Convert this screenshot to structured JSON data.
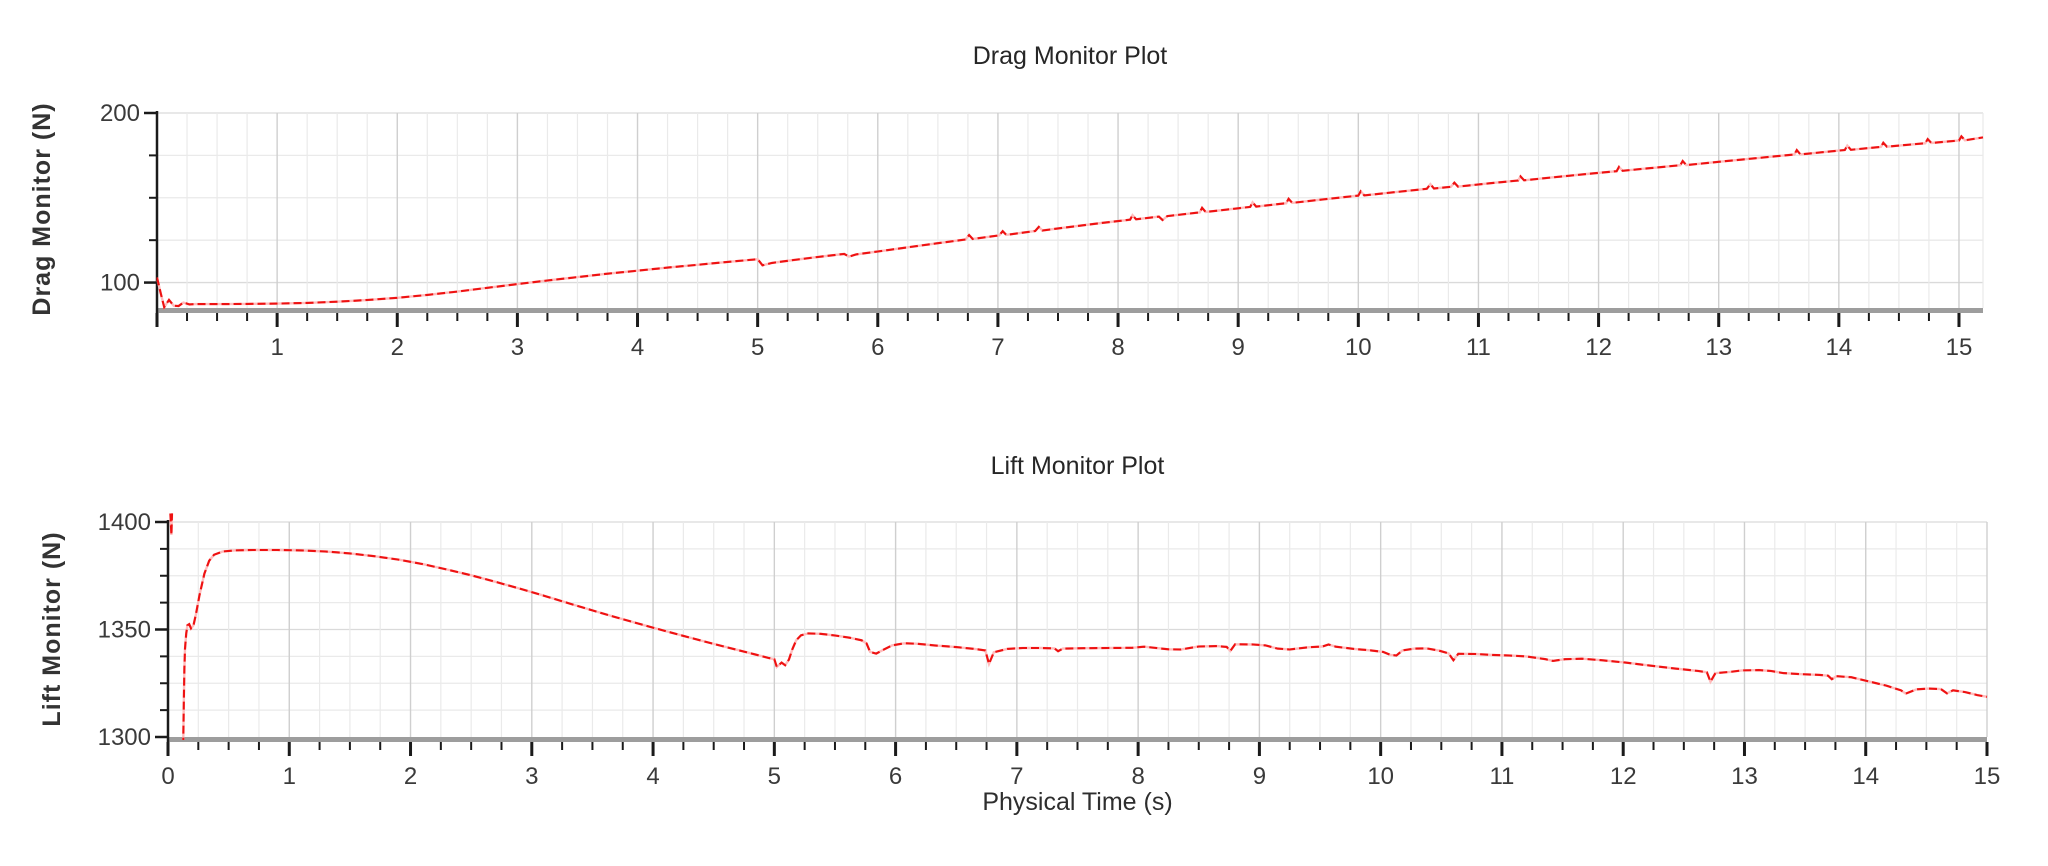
{
  "panel": {
    "background": "#ffffff"
  },
  "colors": {
    "grid_minor": "#eaeaea",
    "grid_major": "#cfcfcf",
    "grid_major_h": "#dadada",
    "axis_x": "#9d9d9d",
    "axis_y": "#1a1a1a",
    "tick_label": "#3a3a3a"
  },
  "chart_data": [
    {
      "type": "line",
      "title": "Drag Monitor Plot",
      "ylabel": "Drag Monitor (N)",
      "xlabel": "",
      "series_name": "Drag Monitor",
      "line_color": "#ee1111",
      "line_underlay_color": "#ffbcbc",
      "legend": "none",
      "grid": true,
      "xlim": [
        0,
        15.2
      ],
      "ylim": [
        85,
        200
      ],
      "x_minor_step": 0.25,
      "x_tick_values": [
        1,
        2,
        3,
        4,
        5,
        6,
        7,
        8,
        9,
        10,
        11,
        12,
        13,
        14,
        15
      ],
      "x_tick_labels": [
        "1",
        "2",
        "3",
        "4",
        "5",
        "6",
        "7",
        "8",
        "9",
        "10",
        "11",
        "12",
        "13",
        "14",
        "15"
      ],
      "y_tick_values": [
        100,
        200
      ],
      "y_tick_labels": [
        "100",
        "200"
      ],
      "y_grid_start": 100,
      "y_minor_step": 25,
      "points": [
        [
          0,
          103
        ],
        [
          0.03,
          94
        ],
        [
          0.06,
          85.5
        ],
        [
          0.1,
          89.8
        ],
        [
          0.14,
          86.3
        ],
        [
          0.18,
          86.2
        ],
        [
          0.22,
          88.2
        ],
        [
          0.27,
          87.1
        ],
        [
          0.32,
          87.3
        ],
        [
          0.5,
          87.3
        ],
        [
          0.75,
          87.4
        ],
        [
          1,
          87.6
        ],
        [
          1.25,
          88
        ],
        [
          1.5,
          88.7
        ],
        [
          1.75,
          89.7
        ],
        [
          2,
          91
        ],
        [
          2.25,
          92.7
        ],
        [
          2.5,
          94.7
        ],
        [
          2.75,
          96.9
        ],
        [
          3,
          99.1
        ],
        [
          3.25,
          101.2
        ],
        [
          3.5,
          103.2
        ],
        [
          3.75,
          105.2
        ],
        [
          4,
          107
        ],
        [
          4.25,
          108.8
        ],
        [
          4.5,
          110.5
        ],
        [
          4.75,
          112.2
        ],
        [
          5,
          113.8
        ],
        [
          5.04,
          110.2
        ],
        [
          5.12,
          111.6
        ],
        [
          5.3,
          113.3
        ],
        [
          5.5,
          115.1
        ],
        [
          5.72,
          116.9
        ],
        [
          5.76,
          115.3
        ],
        [
          5.82,
          116.6
        ],
        [
          6,
          118.3
        ],
        [
          6.25,
          120.8
        ],
        [
          6.5,
          123.2
        ],
        [
          6.73,
          125.4
        ],
        [
          6.76,
          128
        ],
        [
          6.79,
          125.7
        ],
        [
          7.01,
          127.8
        ],
        [
          7.04,
          130.3
        ],
        [
          7.07,
          128.1
        ],
        [
          7.31,
          130.4
        ],
        [
          7.34,
          132.8
        ],
        [
          7.37,
          130.7
        ],
        [
          7.6,
          132.8
        ],
        [
          7.86,
          135.1
        ],
        [
          8.1,
          137.1
        ],
        [
          8.12,
          139.7
        ],
        [
          8.15,
          137.3
        ],
        [
          8.34,
          138.9
        ],
        [
          8.37,
          136.9
        ],
        [
          8.41,
          139.2
        ],
        [
          8.68,
          141.4
        ],
        [
          8.7,
          144.1
        ],
        [
          8.73,
          141.6
        ],
        [
          9,
          143.8
        ],
        [
          9.1,
          144.6
        ],
        [
          9.12,
          147.3
        ],
        [
          9.15,
          144.8
        ],
        [
          9.4,
          146.8
        ],
        [
          9.42,
          149.4
        ],
        [
          9.45,
          147
        ],
        [
          9.7,
          149
        ],
        [
          10,
          151.3
        ],
        [
          10.02,
          153.8
        ],
        [
          10.05,
          151.4
        ],
        [
          10.3,
          153.3
        ],
        [
          10.57,
          155.3
        ],
        [
          10.6,
          158
        ],
        [
          10.63,
          155.5
        ],
        [
          10.77,
          156.5
        ],
        [
          10.8,
          158.9
        ],
        [
          10.83,
          156.6
        ],
        [
          11.1,
          158.6
        ],
        [
          11.33,
          160.2
        ],
        [
          11.35,
          162.6
        ],
        [
          11.38,
          160.3
        ],
        [
          11.6,
          161.9
        ],
        [
          11.9,
          164
        ],
        [
          12.15,
          165.7
        ],
        [
          12.17,
          168.2
        ],
        [
          12.2,
          165.9
        ],
        [
          12.45,
          167.6
        ],
        [
          12.68,
          169.2
        ],
        [
          12.7,
          171.7
        ],
        [
          12.73,
          169.3
        ],
        [
          13,
          171.2
        ],
        [
          13.3,
          173.3
        ],
        [
          13.63,
          175.5
        ],
        [
          13.65,
          178.1
        ],
        [
          13.68,
          175.6
        ],
        [
          13.95,
          177.5
        ],
        [
          14.05,
          178.2
        ],
        [
          14.07,
          180.7
        ],
        [
          14.1,
          178.3
        ],
        [
          14.35,
          180
        ],
        [
          14.37,
          182.4
        ],
        [
          14.4,
          180.1
        ],
        [
          14.6,
          181.4
        ],
        [
          14.72,
          182.2
        ],
        [
          14.74,
          184.6
        ],
        [
          14.77,
          182.3
        ],
        [
          15,
          183.8
        ],
        [
          15.02,
          186.2
        ],
        [
          15.05,
          183.9
        ],
        [
          15.2,
          185.6
        ]
      ]
    },
    {
      "type": "line",
      "title": "Lift Monitor Plot",
      "ylabel": "Lift Monitor (N)",
      "xlabel": "Physical Time (s)",
      "series_name": "Lift Monitor",
      "line_color": "#ee1111",
      "line_underlay_color": "#ffbcbc",
      "legend": "none",
      "grid": true,
      "xlim": [
        0,
        15
      ],
      "ylim": [
        1300,
        1400
      ],
      "x_minor_step": 0.25,
      "x_tick_values": [
        0,
        1,
        2,
        3,
        4,
        5,
        6,
        7,
        8,
        9,
        10,
        11,
        12,
        13,
        14,
        15
      ],
      "x_tick_labels": [
        "0",
        "1",
        "2",
        "3",
        "4",
        "5",
        "6",
        "7",
        "8",
        "9",
        "10",
        "11",
        "12",
        "13",
        "14",
        "15"
      ],
      "y_tick_values": [
        1300,
        1350,
        1400
      ],
      "y_tick_labels": [
        "1300",
        "1350",
        "1400"
      ],
      "y_grid_start": 1300,
      "y_minor_step": 12.5,
      "points": [
        [
          0.02,
          1404
        ],
        [
          0.028,
          1394
        ],
        [
          0.033,
          1404
        ],
        null,
        [
          0.125,
          1296
        ],
        [
          0.13,
          1316
        ],
        [
          0.135,
          1332
        ],
        [
          0.14,
          1341
        ],
        [
          0.15,
          1348
        ],
        [
          0.16,
          1352
        ],
        [
          0.175,
          1352.5
        ],
        [
          0.19,
          1350.5
        ],
        [
          0.21,
          1352
        ],
        [
          0.23,
          1357
        ],
        [
          0.26,
          1366
        ],
        [
          0.3,
          1376
        ],
        [
          0.34,
          1382
        ],
        [
          0.38,
          1384.8
        ],
        [
          0.45,
          1386.3
        ],
        [
          0.55,
          1386.8
        ],
        [
          0.7,
          1387
        ],
        [
          0.9,
          1387
        ],
        [
          1.1,
          1386.8
        ],
        [
          1.3,
          1386.3
        ],
        [
          1.5,
          1385.4
        ],
        [
          1.7,
          1384.1
        ],
        [
          1.9,
          1382.5
        ],
        [
          2.1,
          1380.4
        ],
        [
          2.3,
          1377.9
        ],
        [
          2.5,
          1375.2
        ],
        [
          2.7,
          1372.2
        ],
        [
          2.9,
          1369
        ],
        [
          3.1,
          1365.7
        ],
        [
          3.3,
          1362.3
        ],
        [
          3.5,
          1358.9
        ],
        [
          3.7,
          1355.6
        ],
        [
          3.9,
          1352.4
        ],
        [
          4.1,
          1349.3
        ],
        [
          4.3,
          1346.3
        ],
        [
          4.5,
          1343.3
        ],
        [
          4.7,
          1340.4
        ],
        [
          4.85,
          1338.3
        ],
        [
          4.95,
          1336.8
        ],
        [
          5.0,
          1336.2
        ],
        [
          5.02,
          1332.6
        ],
        [
          5.06,
          1334.6
        ],
        [
          5.09,
          1333.4
        ],
        [
          5.12,
          1336
        ],
        [
          5.15,
          1341
        ],
        [
          5.18,
          1345
        ],
        [
          5.22,
          1347.3
        ],
        [
          5.28,
          1348.2
        ],
        [
          5.38,
          1348
        ],
        [
          5.5,
          1347.2
        ],
        [
          5.62,
          1346.2
        ],
        [
          5.72,
          1345
        ],
        [
          5.76,
          1343.6
        ],
        [
          5.79,
          1339.6
        ],
        [
          5.84,
          1338.8
        ],
        [
          5.9,
          1340.6
        ],
        [
          5.97,
          1342.6
        ],
        [
          6.07,
          1343.6
        ],
        [
          6.17,
          1343.4
        ],
        [
          6.32,
          1342.6
        ],
        [
          6.5,
          1341.8
        ],
        [
          6.65,
          1341
        ],
        [
          6.74,
          1340.3
        ],
        [
          6.77,
          1334
        ],
        [
          6.81,
          1339.4
        ],
        [
          6.92,
          1341
        ],
        [
          7.05,
          1341.4
        ],
        [
          7.2,
          1341.4
        ],
        [
          7.31,
          1341.2
        ],
        [
          7.34,
          1339.9
        ],
        [
          7.38,
          1341.1
        ],
        [
          7.55,
          1341.3
        ],
        [
          7.75,
          1341.4
        ],
        [
          7.95,
          1341.5
        ],
        [
          8.05,
          1342
        ],
        [
          8.15,
          1341.4
        ],
        [
          8.25,
          1340.8
        ],
        [
          8.35,
          1340.7
        ],
        [
          8.5,
          1342.1
        ],
        [
          8.65,
          1342.3
        ],
        [
          8.73,
          1341.9
        ],
        [
          8.76,
          1340
        ],
        [
          8.8,
          1343.1
        ],
        [
          8.95,
          1343
        ],
        [
          9.05,
          1342.6
        ],
        [
          9.15,
          1341.1
        ],
        [
          9.25,
          1340.7
        ],
        [
          9.4,
          1341.7
        ],
        [
          9.52,
          1342.1
        ],
        [
          9.57,
          1343
        ],
        [
          9.63,
          1342
        ],
        [
          9.78,
          1341
        ],
        [
          9.92,
          1340.3
        ],
        [
          10.02,
          1339.6
        ],
        [
          10.08,
          1338.2
        ],
        [
          10.13,
          1337.9
        ],
        [
          10.18,
          1340.3
        ],
        [
          10.28,
          1341.1
        ],
        [
          10.38,
          1341.2
        ],
        [
          10.48,
          1340.2
        ],
        [
          10.56,
          1338.9
        ],
        [
          10.6,
          1335.7
        ],
        [
          10.64,
          1338.7
        ],
        [
          10.78,
          1338.6
        ],
        [
          10.92,
          1338.2
        ],
        [
          11.06,
          1337.9
        ],
        [
          11.2,
          1337.5
        ],
        [
          11.36,
          1336.2
        ],
        [
          11.42,
          1335.4
        ],
        [
          11.52,
          1336.2
        ],
        [
          11.66,
          1336.4
        ],
        [
          11.82,
          1335.7
        ],
        [
          12.02,
          1334.6
        ],
        [
          12.22,
          1333.2
        ],
        [
          12.42,
          1331.9
        ],
        [
          12.62,
          1330.7
        ],
        [
          12.69,
          1330.1
        ],
        [
          12.72,
          1325.7
        ],
        [
          12.76,
          1329.7
        ],
        [
          12.88,
          1330.3
        ],
        [
          12.98,
          1331
        ],
        [
          13.12,
          1331.1
        ],
        [
          13.22,
          1330.7
        ],
        [
          13.32,
          1329.7
        ],
        [
          13.47,
          1329.2
        ],
        [
          13.62,
          1328.9
        ],
        [
          13.69,
          1328.5
        ],
        [
          13.72,
          1326.9
        ],
        [
          13.76,
          1328.3
        ],
        [
          13.88,
          1327.8
        ],
        [
          14.02,
          1325.9
        ],
        [
          14.17,
          1323.9
        ],
        [
          14.29,
          1321.7
        ],
        [
          14.33,
          1320.2
        ],
        [
          14.42,
          1322.2
        ],
        [
          14.52,
          1322.5
        ],
        [
          14.62,
          1322.3
        ],
        [
          14.67,
          1320.3
        ],
        [
          14.72,
          1321.7
        ],
        [
          14.82,
          1320.9
        ],
        [
          14.92,
          1319.5
        ],
        [
          15.0,
          1318.7
        ]
      ]
    }
  ]
}
